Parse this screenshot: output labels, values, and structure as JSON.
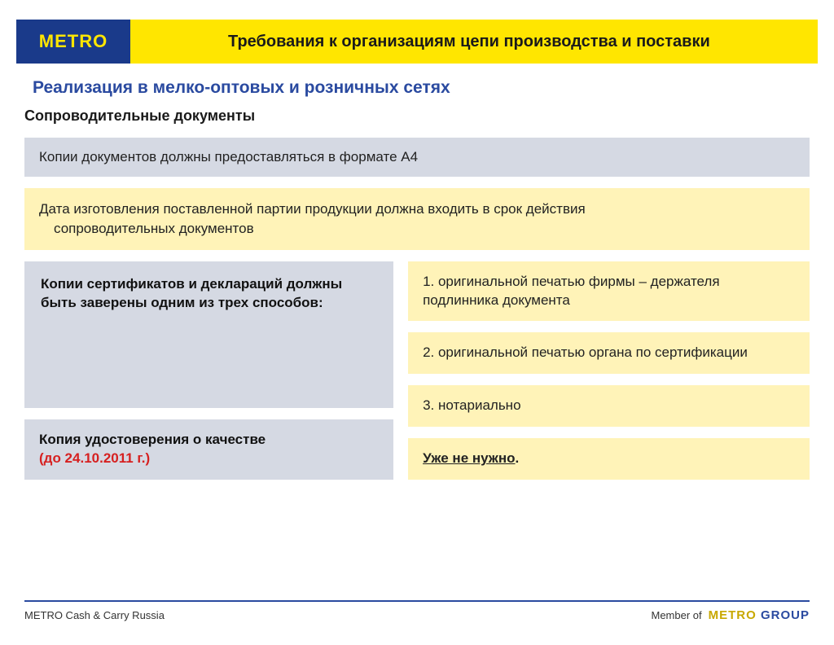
{
  "colors": {
    "metro_blue": "#1a3a8a",
    "metro_yellow": "#ffe600",
    "box_gray": "#d5d9e3",
    "box_yellow": "#fff3b8",
    "title_blue": "#2a4aa0",
    "red_text": "#d62020"
  },
  "header": {
    "logo_text": "METRO",
    "title": "Требования к организациям цепи производства и поставки"
  },
  "subtitle": "Реализация в мелко-оптовых и розничных сетях",
  "section_heading": "Сопроводительные документы",
  "box1": "Копии документов должны предоставляться в формате А4",
  "box2_line1": "Дата изготовления поставленной партии продукции должна входить в срок действия",
  "box2_line2": "сопроводительных документов",
  "left_top": "Копии сертификатов и деклараций должны быть заверены одним из трех способов:",
  "right_items": [
    "1. оригинальной печатью фирмы – держателя подлинника документа",
    "2. оригинальной печатью органа по сертификации",
    "3. нотариально"
  ],
  "left_bottom_line1": " Копия удостоверения о качестве",
  "left_bottom_line2": "(до 24.10.2011 г.)",
  "right_bottom": "Уже не нужно",
  "footer_left": "METRO Cash & Carry Russia",
  "footer_member": "Member of",
  "footer_logo_metro": "METRO",
  "footer_logo_group": "GROUP"
}
